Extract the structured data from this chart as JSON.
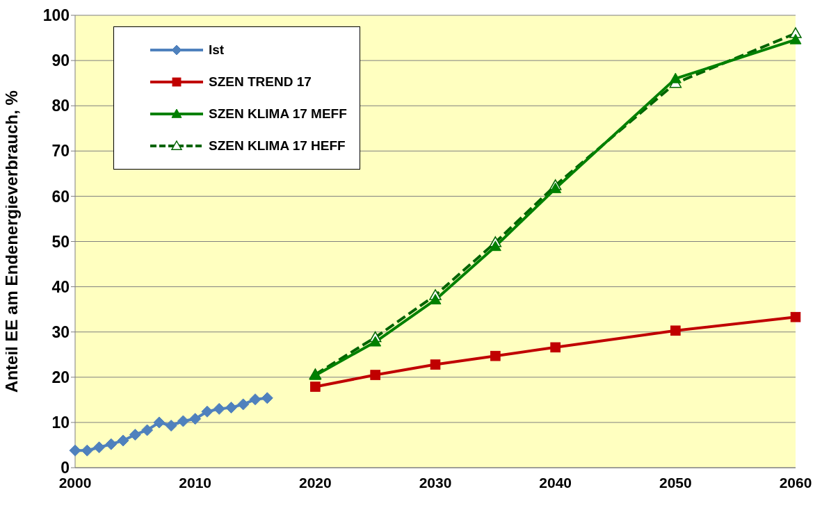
{
  "chart_data": {
    "type": "line",
    "ylabel": "Anteil EE am Endenergieverbrauch, %",
    "xlim": [
      2000,
      2060
    ],
    "xticks": [
      2000,
      2010,
      2020,
      2030,
      2040,
      2050,
      2060
    ],
    "ylim": [
      0,
      100
    ],
    "yticks": [
      0,
      10,
      20,
      30,
      40,
      50,
      60,
      70,
      80,
      90,
      100
    ],
    "grid": "y",
    "legend": "top left",
    "series": [
      {
        "name": "Ist",
        "color": "#4f81bd",
        "marker": "diamond",
        "line_style": "solid",
        "x": [
          2000,
          2001,
          2002,
          2003,
          2004,
          2005,
          2006,
          2007,
          2008,
          2009,
          2010,
          2011,
          2012,
          2013,
          2014,
          2015,
          2016
        ],
        "values": [
          3.8,
          3.8,
          4.5,
          5.2,
          6.0,
          7.3,
          8.3,
          10.0,
          9.3,
          10.3,
          10.8,
          12.4,
          13.0,
          13.3,
          14.0,
          15.1,
          15.4
        ]
      },
      {
        "name": "SZEN TREND 17",
        "color": "#c00000",
        "marker": "square",
        "line_style": "solid",
        "x": [
          2020,
          2025,
          2030,
          2035,
          2040,
          2050,
          2060
        ],
        "values": [
          17.9,
          20.5,
          22.8,
          24.7,
          26.6,
          30.3,
          33.3
        ]
      },
      {
        "name": "SZEN KLIMA 17 MEFF",
        "color": "#008000",
        "marker": "triangle",
        "line_style": "solid",
        "x": [
          2020,
          2025,
          2030,
          2035,
          2040,
          2050,
          2060
        ],
        "values": [
          20.4,
          27.8,
          37.1,
          48.9,
          61.7,
          86.0,
          94.6
        ]
      },
      {
        "name": "SZEN KLIMA 17 HEFF",
        "color": "#006400",
        "marker": "triangle",
        "line_style": "dashed",
        "x": [
          2020,
          2025,
          2030,
          2035,
          2040,
          2050,
          2060
        ],
        "values": [
          20.6,
          28.8,
          38.1,
          49.8,
          62.4,
          85.0,
          96.0
        ]
      }
    ]
  }
}
